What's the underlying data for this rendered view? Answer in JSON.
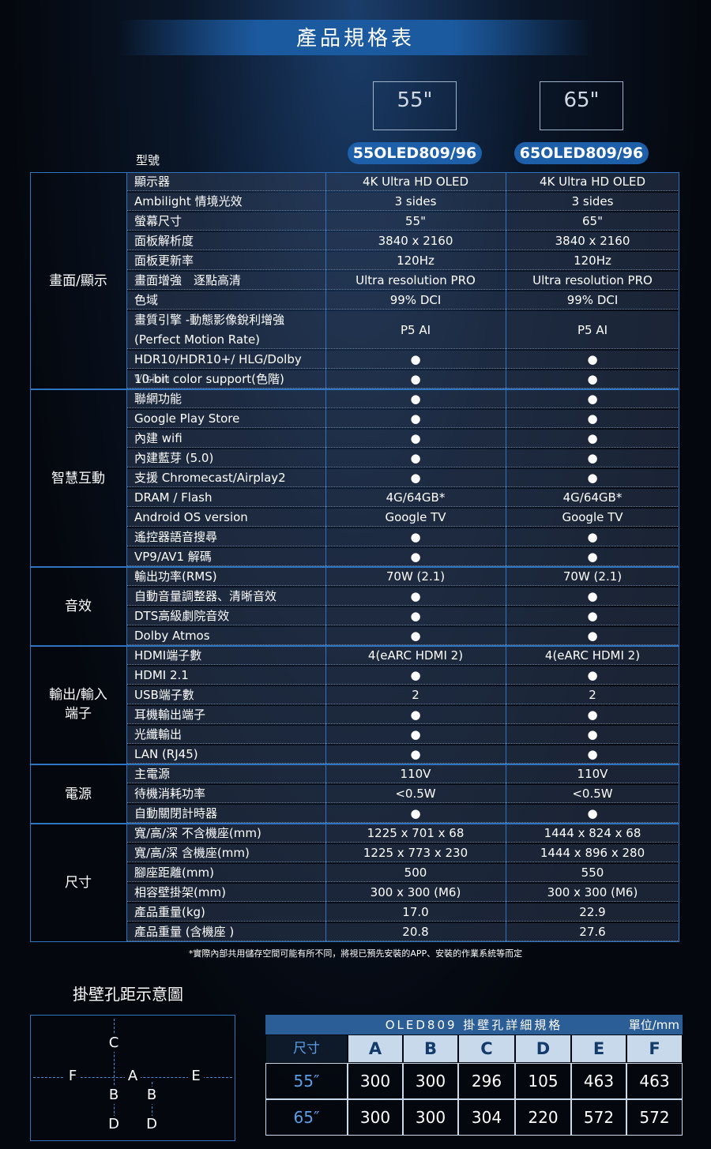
{
  "header": {
    "title": "產品規格表"
  },
  "model_label": "型號",
  "models": [
    {
      "size": "55\"",
      "name": "55OLED809/96"
    },
    {
      "size": "65\"",
      "name": "65OLED809/96"
    }
  ],
  "sections": [
    {
      "name": "畫面/顯示",
      "rows": [
        [
          "顯示器",
          "4K Ultra HD OLED",
          "4K Ultra HD OLED"
        ],
        [
          "Ambilight 情境光效",
          "3 sides",
          "3 sides"
        ],
        [
          "螢幕尺寸",
          "55\"",
          "65\""
        ],
        [
          "面板解析度",
          "3840 x 2160",
          "3840 x 2160"
        ],
        [
          "面板更新率",
          "120Hz",
          "120Hz"
        ],
        [
          "畫面增強　逐點高清",
          "Ultra resolution PRO",
          "Ultra resolution PRO"
        ],
        [
          "色域",
          "99% DCI",
          "99% DCI"
        ],
        [
          "畫質引擎 -動態影像銳利增強\n(Perfect Motion Rate)",
          "P5 AI",
          "P5 AI"
        ],
        [
          "HDR10/HDR10+/ HLG/Dolby Vision",
          "●",
          "●"
        ],
        [
          "10-bit color support(色階)",
          "●",
          "●"
        ]
      ]
    },
    {
      "name": "智慧互動",
      "rows": [
        [
          "聯網功能",
          "●",
          "●"
        ],
        [
          "Google Play Store",
          "●",
          "●"
        ],
        [
          "內建 wifi",
          "●",
          "●"
        ],
        [
          "內建藍芽 (5.0)",
          "●",
          "●"
        ],
        [
          "支援 Chromecast/Airplay2",
          "●",
          "●"
        ],
        [
          "DRAM / Flash",
          "4G/64GB*",
          "4G/64GB*"
        ],
        [
          "Android OS version",
          "Google TV",
          "Google TV"
        ],
        [
          "遙控器語音搜尋",
          "●",
          "●"
        ],
        [
          "VP9/AV1 解碼",
          "●",
          "●"
        ]
      ]
    },
    {
      "name": "音效",
      "rows": [
        [
          "輸出功率(RMS)",
          "70W (2.1)",
          "70W (2.1)"
        ],
        [
          "自動音量調整器、清晰音效",
          "●",
          "●"
        ],
        [
          "DTS高級劇院音效",
          "●",
          "●"
        ],
        [
          "Dolby Atmos",
          "●",
          "●"
        ]
      ]
    },
    {
      "name": "輸出/輸入\n端子",
      "rows": [
        [
          "HDMI端子數",
          "4(eARC HDMI 2)",
          "4(eARC HDMI 2)"
        ],
        [
          "HDMI 2.1",
          "●",
          "●"
        ],
        [
          "USB端子數",
          "2",
          "2"
        ],
        [
          "耳機輸出端子",
          "●",
          "●"
        ],
        [
          "光纖輸出",
          "●",
          "●"
        ],
        [
          "LAN (RJ45)",
          "●",
          "●"
        ]
      ]
    },
    {
      "name": "電源",
      "rows": [
        [
          "主電源",
          "110V",
          "110V"
        ],
        [
          "待機消耗功率",
          "<0.5W",
          "<0.5W"
        ],
        [
          "自動關閉計時器",
          "●",
          "●"
        ]
      ]
    },
    {
      "name": "尺寸",
      "rows": [
        [
          "寬/高/深  不含機座(mm)",
          "1225 x 701 x 68",
          "1444 x 824 x 68"
        ],
        [
          "寬/高/深  含機座(mm)",
          "1225 x 773 x 230",
          "1444 x 896 x 280"
        ],
        [
          "腳座距離(mm)",
          "500",
          "550"
        ],
        [
          "相容壁掛架(mm)",
          "300 x 300 (M6)",
          "300 x 300 (M6)"
        ],
        [
          "產品重量(kg)",
          "17.0",
          "22.9"
        ],
        [
          "產品重量 (含機座 )",
          "20.8",
          "27.6"
        ]
      ]
    }
  ],
  "footnote": "*實際內部共用儲存空間可能有所不同，將視已預先安裝的APP、安裝的作業系統等而定",
  "diagram": {
    "title": "掛壁孔距示意圖",
    "labels": [
      "C",
      "F",
      "A",
      "E",
      "B",
      "B",
      "D",
      "D"
    ]
  },
  "wall_table": {
    "title": "OLED809 掛壁孔詳細規格",
    "unit": "單位/mm",
    "header": [
      "尺寸",
      "A",
      "B",
      "C",
      "D",
      "E",
      "F"
    ],
    "rows": [
      [
        "55″",
        300,
        300,
        296,
        105,
        463,
        463
      ],
      [
        "65″",
        300,
        300,
        304,
        220,
        572,
        572
      ]
    ]
  }
}
